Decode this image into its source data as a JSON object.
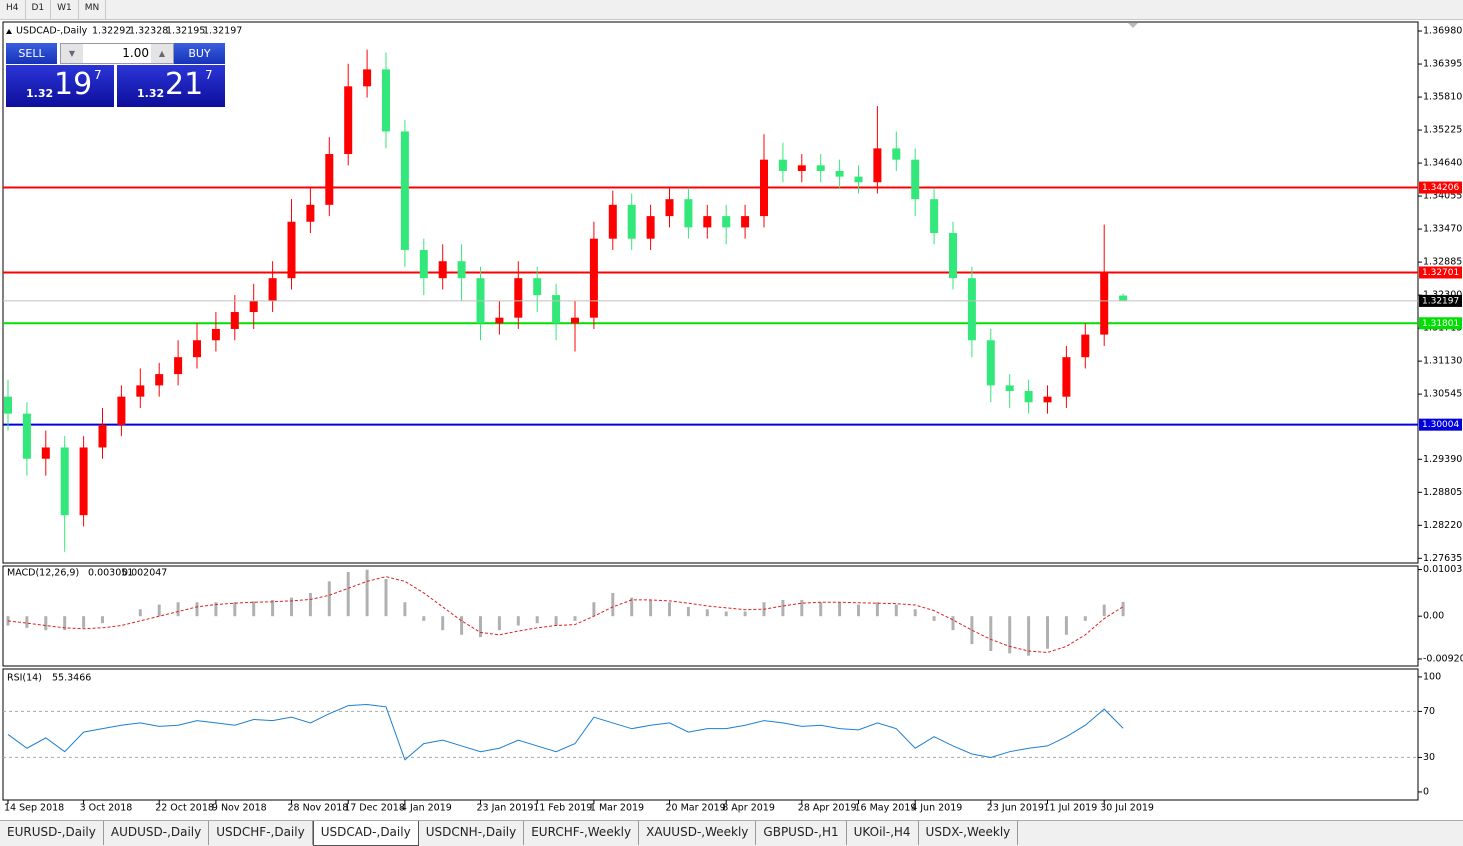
{
  "toolbar": {
    "timeframes": [
      "H4",
      "D1",
      "W1",
      "MN"
    ]
  },
  "trade_panel": {
    "sell": "SELL",
    "buy": "BUY",
    "lot": "1.00",
    "sell_price": {
      "big": "1.32",
      "pips": "19",
      "frac": "7"
    },
    "buy_price": {
      "big": "1.32",
      "pips": "21",
      "frac": "7"
    }
  },
  "chart_data": [
    {
      "type": "candlestick",
      "title": "USDCAD-,Daily",
      "categories": [
        "14 Sep 2018",
        null,
        null,
        null,
        "3 Oct 2018",
        null,
        null,
        null,
        "22 Oct 2018",
        null,
        null,
        "9 Nov 2018",
        null,
        null,
        null,
        "28 Nov 2018",
        null,
        null,
        "17 Dec 2018",
        null,
        null,
        "4 Jan 2019",
        null,
        null,
        null,
        "23 Jan 2019",
        null,
        null,
        "11 Feb 2019",
        null,
        null,
        "1 Mar 2019",
        null,
        null,
        null,
        "20 Mar 2019",
        null,
        null,
        "8 Apr 2019",
        null,
        null,
        null,
        "28 Apr 2019",
        null,
        null,
        "16 May 2019",
        null,
        null,
        "4 Jun 2019",
        null,
        null,
        null,
        "23 Jun 2019",
        null,
        null,
        "11 Jul 2019",
        null,
        null,
        "30 Jul 2019",
        null
      ],
      "open": [
        1.305,
        1.302,
        1.294,
        1.296,
        1.284,
        1.296,
        1.3,
        1.305,
        1.307,
        1.309,
        1.312,
        1.315,
        1.317,
        1.32,
        1.322,
        1.326,
        1.336,
        1.339,
        1.348,
        1.36,
        1.363,
        1.352,
        1.331,
        1.326,
        1.329,
        1.326,
        1.318,
        1.319,
        1.326,
        1.323,
        1.318,
        1.319,
        1.333,
        1.339,
        1.333,
        1.337,
        1.34,
        1.335,
        1.337,
        1.335,
        1.337,
        1.347,
        1.345,
        1.346,
        1.345,
        1.344,
        1.343,
        1.349,
        1.347,
        1.34,
        1.334,
        1.326,
        1.315,
        1.307,
        1.306,
        1.304,
        1.305,
        1.312,
        1.316,
        1.32292
      ],
      "high": [
        1.308,
        1.304,
        1.299,
        1.298,
        1.298,
        1.303,
        1.307,
        1.31,
        1.311,
        1.315,
        1.318,
        1.32,
        1.323,
        1.325,
        1.329,
        1.34,
        1.342,
        1.351,
        1.364,
        1.3665,
        1.366,
        1.354,
        1.333,
        1.332,
        1.332,
        1.328,
        1.322,
        1.329,
        1.328,
        1.325,
        1.322,
        1.336,
        1.3415,
        1.341,
        1.339,
        1.342,
        1.342,
        1.339,
        1.339,
        1.339,
        1.3515,
        1.35,
        1.348,
        1.348,
        1.347,
        1.346,
        1.3565,
        1.352,
        1.349,
        1.342,
        1.336,
        1.328,
        1.317,
        1.309,
        1.308,
        1.307,
        1.314,
        1.318,
        1.3355,
        1.32328
      ],
      "low": [
        1.299,
        1.291,
        1.291,
        1.2775,
        1.282,
        1.294,
        1.298,
        1.303,
        1.305,
        1.307,
        1.31,
        1.313,
        1.315,
        1.317,
        1.32,
        1.324,
        1.334,
        1.337,
        1.346,
        1.358,
        1.349,
        1.328,
        1.323,
        1.324,
        1.322,
        1.315,
        1.316,
        1.317,
        1.32,
        1.315,
        1.313,
        1.317,
        1.331,
        1.331,
        1.331,
        1.335,
        1.333,
        1.333,
        1.332,
        1.333,
        1.335,
        1.343,
        1.343,
        1.343,
        1.342,
        1.341,
        1.341,
        1.345,
        1.337,
        1.332,
        1.324,
        1.312,
        1.304,
        1.303,
        1.302,
        1.302,
        1.303,
        1.31,
        1.314,
        1.32195
      ],
      "close": [
        1.302,
        1.294,
        1.296,
        1.284,
        1.296,
        1.3,
        1.305,
        1.307,
        1.309,
        1.312,
        1.315,
        1.317,
        1.32,
        1.322,
        1.326,
        1.336,
        1.339,
        1.348,
        1.36,
        1.363,
        1.352,
        1.331,
        1.326,
        1.329,
        1.326,
        1.318,
        1.319,
        1.326,
        1.323,
        1.318,
        1.319,
        1.333,
        1.339,
        1.333,
        1.337,
        1.34,
        1.335,
        1.337,
        1.335,
        1.337,
        1.347,
        1.345,
        1.346,
        1.345,
        1.344,
        1.343,
        1.349,
        1.347,
        1.34,
        1.334,
        1.326,
        1.315,
        1.307,
        1.306,
        1.304,
        1.305,
        1.312,
        1.316,
        1.327,
        1.32197
      ],
      "up_color": "#ff0000",
      "down_color": "#33e87a",
      "levels": [
        {
          "value": 1.34206,
          "color": "#ff0000"
        },
        {
          "value": 1.32701,
          "color": "#ff0000"
        },
        {
          "value": 1.31801,
          "color": "#00e000"
        },
        {
          "value": 1.30004,
          "color": "#0000dd"
        }
      ],
      "ylim": [
        1.2757,
        1.3714
      ],
      "yticks": [
        {
          "value": 1.3698,
          "label": "1.36980"
        },
        1.36395,
        {
          "value": 1.3581,
          "label": "1.35810"
        },
        1.35225,
        {
          "value": 1.3464,
          "label": "1.34640"
        },
        1.34055,
        {
          "value": 1.3347,
          "label": "1.33470"
        },
        1.32885,
        {
          "value": 1.323,
          "label": "1.32300"
        },
        1.31715,
        {
          "value": 1.3113,
          "label": "1.31130"
        },
        1.30545,
        {
          "value": 1.2939,
          "label": "1.29390"
        },
        1.28805,
        {
          "value": 1.2822,
          "label": "1.28220"
        },
        1.27635
      ]
    },
    {
      "type": "macd",
      "title": "MACD(12,26,9)",
      "histogram": [
        -0.002,
        -0.0025,
        -0.003,
        -0.003,
        -0.0025,
        -0.0015,
        0,
        0.0015,
        0.0025,
        0.003,
        0.003,
        0.003,
        0.003,
        0.0032,
        0.0035,
        0.004,
        0.005,
        0.0075,
        0.0095,
        0.01,
        0.008,
        0.003,
        -0.001,
        -0.003,
        -0.004,
        -0.0045,
        -0.003,
        -0.002,
        -0.0015,
        -0.002,
        -0.001,
        0.003,
        0.005,
        0.004,
        0.0035,
        0.003,
        0.002,
        0.0015,
        0.001,
        0.001,
        0.003,
        0.0035,
        0.0035,
        0.003,
        0.003,
        0.0025,
        0.003,
        0.0025,
        0.0015,
        -0.001,
        -0.003,
        -0.006,
        -0.0075,
        -0.008,
        -0.0085,
        -0.007,
        -0.004,
        -0.001,
        0.0025,
        0.003051
      ],
      "signal": [
        -0.001,
        -0.0015,
        -0.002,
        -0.0025,
        -0.0027,
        -0.0025,
        -0.002,
        -0.001,
        0,
        0.001,
        0.002,
        0.0025,
        0.0028,
        0.003,
        0.0031,
        0.0033,
        0.0036,
        0.0045,
        0.006,
        0.0075,
        0.0085,
        0.0075,
        0.005,
        0.002,
        -0.001,
        -0.0035,
        -0.004,
        -0.0032,
        -0.0025,
        -0.002,
        -0.0018,
        0,
        0.002,
        0.0035,
        0.0035,
        0.0033,
        0.0028,
        0.0022,
        0.0018,
        0.0014,
        0.0015,
        0.0022,
        0.0028,
        0.003,
        0.003,
        0.0029,
        0.0028,
        0.0027,
        0.0024,
        0.0012,
        -0.0008,
        -0.003,
        -0.005,
        -0.0065,
        -0.0075,
        -0.0078,
        -0.0065,
        -0.004,
        -0.0005,
        0.002047
      ],
      "hist_color": "#b0b0b0",
      "signal_color": "#dd2020",
      "ylim": [
        -0.0105,
        0.0108
      ],
      "yticks": [
        0.010031,
        {
          "value": 0,
          "label": "0.00"
        },
        -0.009203
      ]
    },
    {
      "type": "rsi",
      "title": "RSI(14)",
      "values": [
        50,
        38,
        47,
        35,
        52,
        55,
        58,
        60,
        57,
        58,
        62,
        60,
        58,
        63,
        62,
        65,
        60,
        68,
        75,
        76,
        74,
        28,
        42,
        45,
        40,
        35,
        38,
        45,
        40,
        35,
        42,
        65,
        60,
        55,
        58,
        60,
        52,
        55,
        55,
        58,
        62,
        60,
        57,
        58,
        55,
        54,
        60,
        55,
        38,
        48,
        40,
        33,
        30,
        35,
        38,
        40,
        48,
        58,
        72,
        55.3466
      ],
      "color": "#1e7fd0",
      "ylim": [
        -7,
        106
      ],
      "yticks": [
        100,
        70,
        30,
        0
      ]
    }
  ],
  "tabs": [
    "EURUSD-,Daily",
    "AUDUSD-,Daily",
    "USDCHF-,Daily",
    "USDCAD-,Daily",
    "USDCNH-,Daily",
    "EURCHF-,Weekly",
    "XAUUSD-,Weekly",
    "GBPUSD-,H1",
    "UKOil-,H4",
    "USDX-,Weekly"
  ],
  "active_tab": 3
}
